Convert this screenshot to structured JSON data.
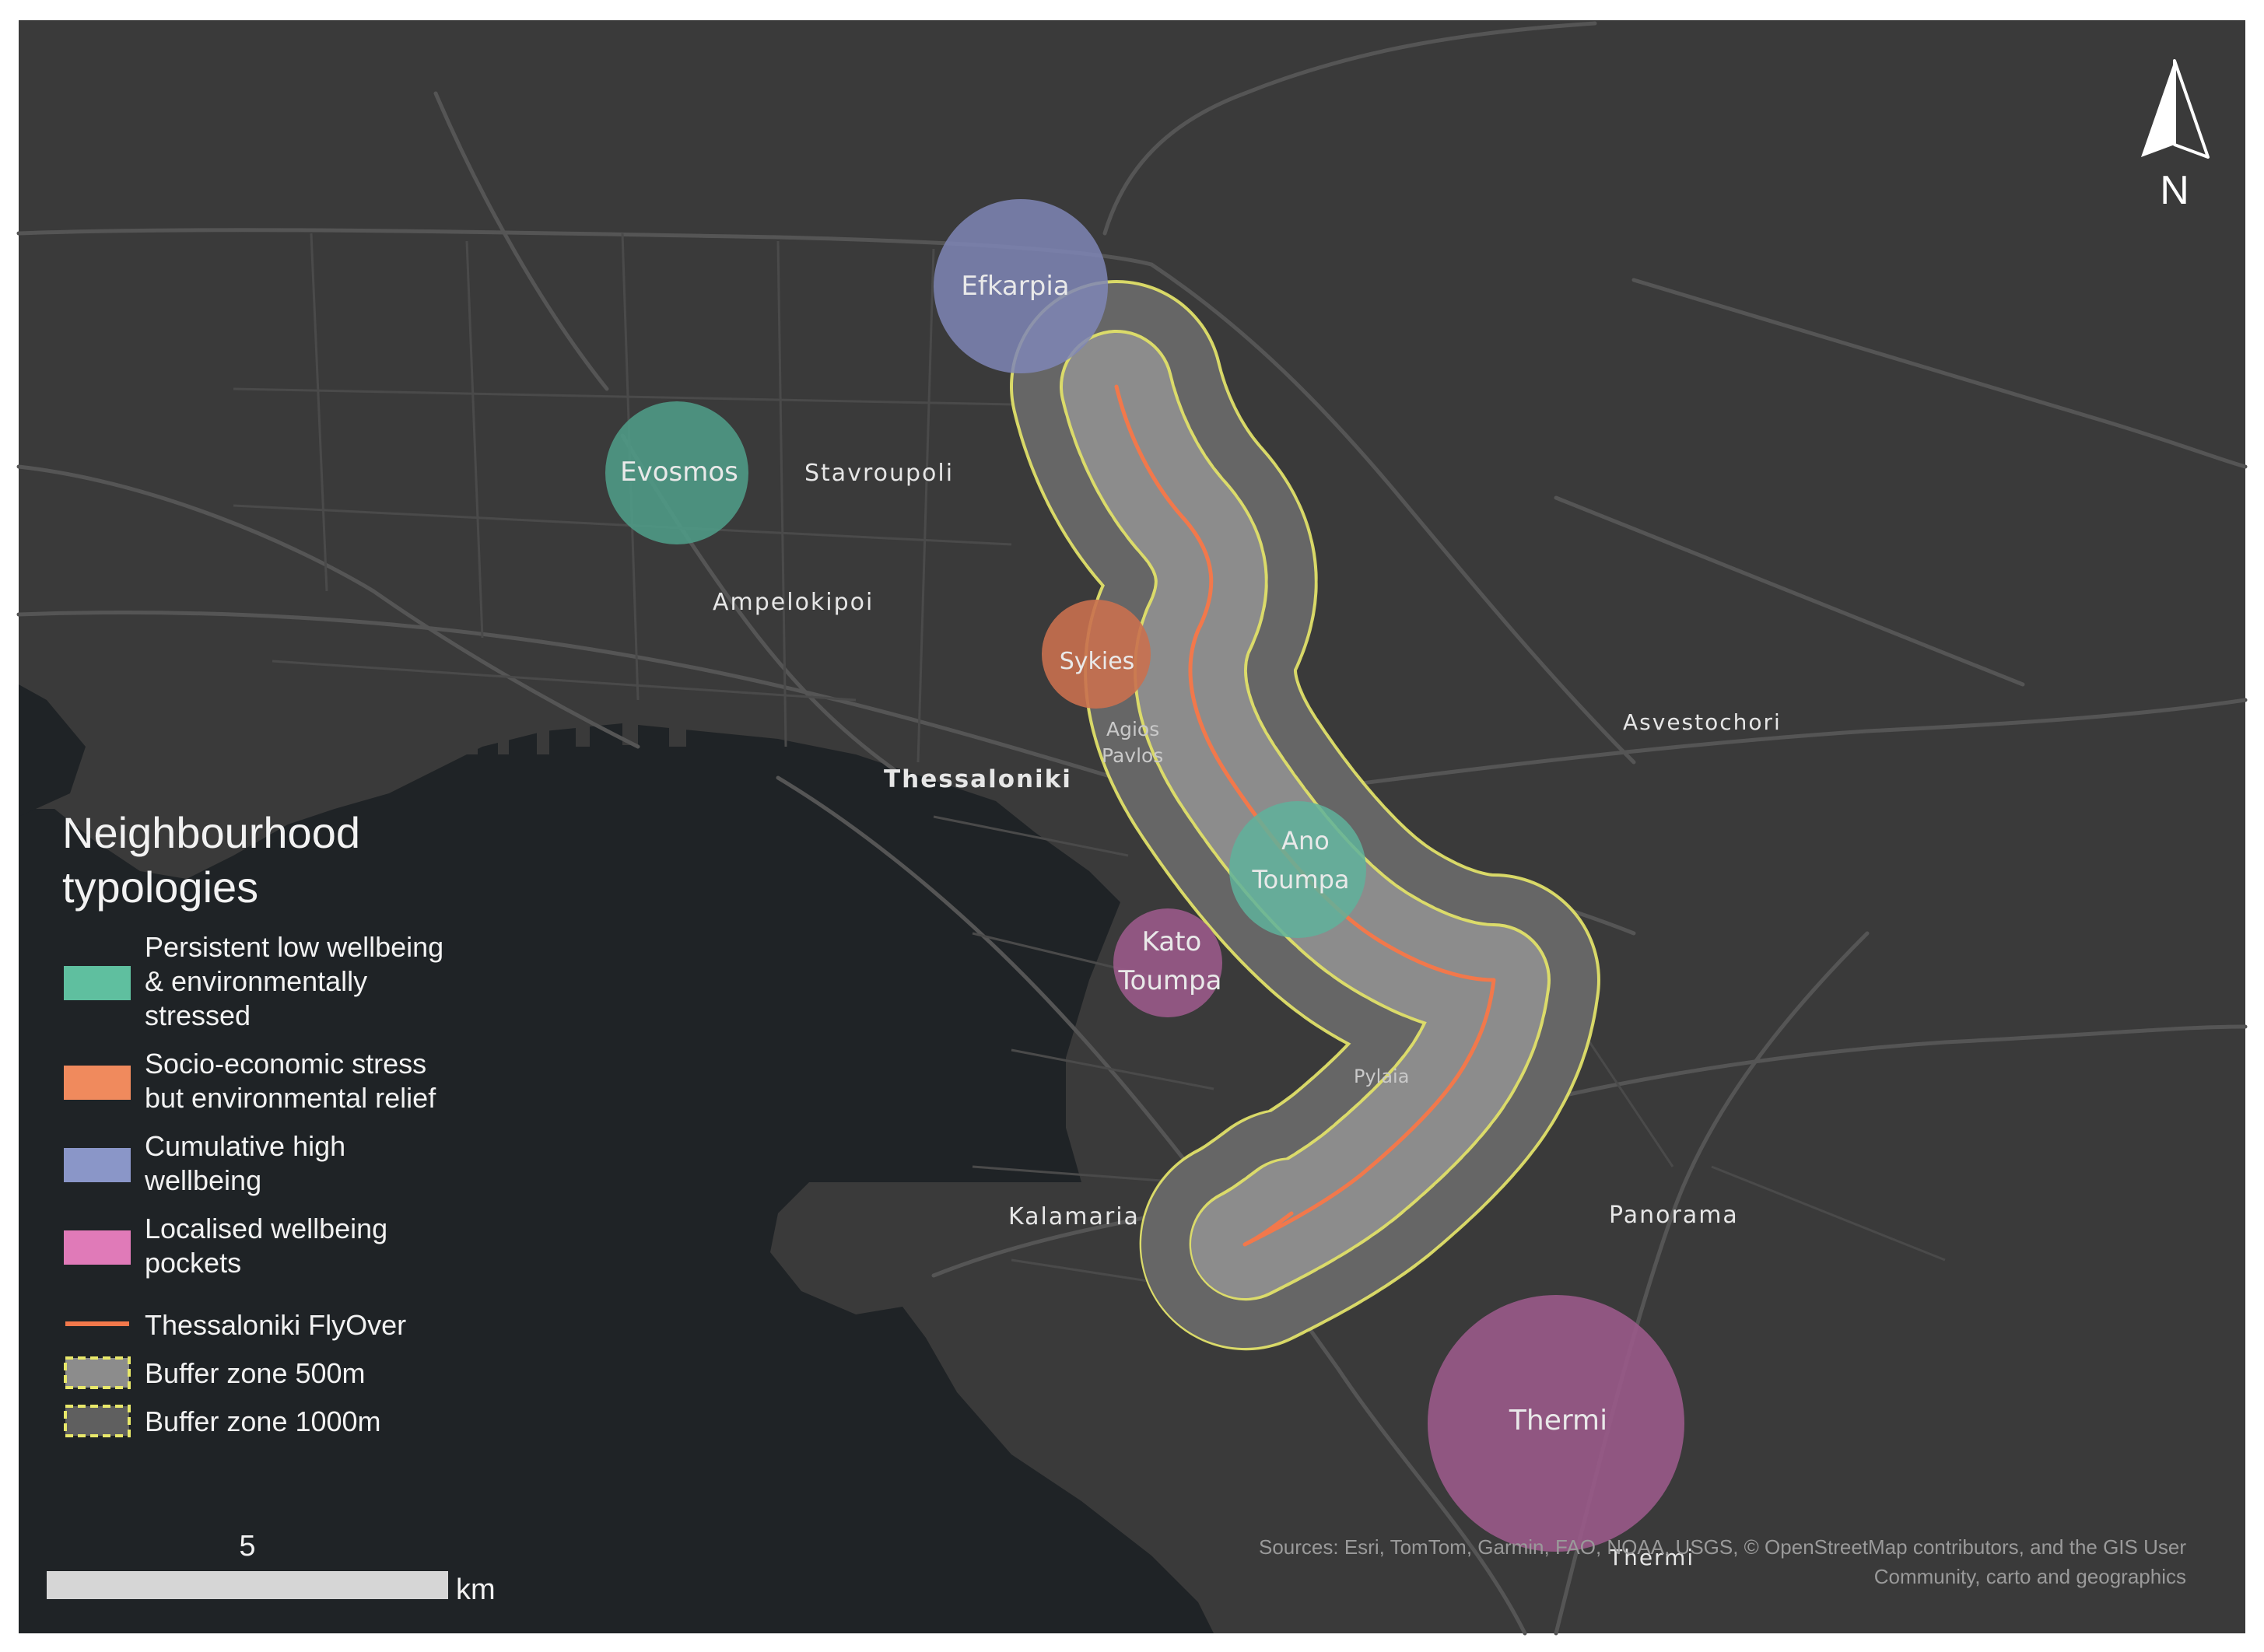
{
  "map": {
    "north_label": "N",
    "places": {
      "stavroupoli": "Stavroupoli",
      "ampelokipoi": "Ampelokipoi",
      "thessaloniki": "Thessaloniki",
      "agios": "Agios",
      "pavlos": "Pavlos",
      "asvestochori": "Asvestochori",
      "pylaia": "Pylaia",
      "kalamaria": "Kalamaria",
      "panorama": "Panorama",
      "thermi_town": "Thermi"
    },
    "neighbourhoods": {
      "efkarpia": {
        "label": "Efkarpia",
        "typology": "Cumulative high wellbeing",
        "color": "#7f86b6"
      },
      "evosmos": {
        "label": "Evosmos",
        "typology": "Persistent low wellbeing & environmentally stressed",
        "color": "#4f9a86"
      },
      "sykies": {
        "label": "Sykies",
        "typology": "Socio-economic stress but environmental relief",
        "color": "#c9704f"
      },
      "ano_toumpa": {
        "line1": "Ano",
        "line2": "Toumpa",
        "typology": "Persistent low wellbeing & environmentally stressed",
        "color": "#5fb29b"
      },
      "kato_toumpa": {
        "line1": "Kato",
        "line2": "Toumpa",
        "typology": "Localised wellbeing pockets",
        "color": "#9a5a8a"
      },
      "thermi": {
        "label": "Thermi",
        "typology": "Localised wellbeing pockets",
        "color": "#9a5a8a"
      }
    },
    "colors": {
      "land": "#3a3a3a",
      "sea": "#1f2326",
      "flyover": "#f2784b",
      "buffer_500": "#8c8c8c",
      "buffer_1000": "#6a6a6a",
      "buffer_outline": "#e8e86a"
    }
  },
  "legend": {
    "title_line1": "Neighbourhood",
    "title_line2": "typologies",
    "items": [
      {
        "lines": [
          "Persistent low wellbeing",
          "& environmentally",
          "stressed"
        ],
        "color": "#5fbf9f",
        "kind": "swatch"
      },
      {
        "lines": [
          "Socio-economic stress",
          "but environmental relief"
        ],
        "color": "#f08a5d",
        "kind": "swatch"
      },
      {
        "lines": [
          "Cumulative high",
          "wellbeing"
        ],
        "color": "#8a96c8",
        "kind": "swatch"
      },
      {
        "lines": [
          "Localised wellbeing",
          "pockets"
        ],
        "color": "#e07ab8",
        "kind": "swatch"
      },
      {
        "lines": [
          "Thessaloniki FlyOver"
        ],
        "color": "#f2784b",
        "kind": "line"
      },
      {
        "lines": [
          "Buffer zone 500m"
        ],
        "color": "#8c8c8c",
        "kind": "buffer"
      },
      {
        "lines": [
          "Buffer zone 1000m"
        ],
        "color": "#5f5f5f",
        "kind": "buffer"
      }
    ]
  },
  "scale_bar": {
    "value": "5",
    "unit": "km"
  },
  "attribution": {
    "line1": "Sources: Esri, TomTom, Garmin, FAO, NOAA, USGS, © OpenStreetMap contributors, and the GIS User",
    "line2": "Community, carto and geographics"
  }
}
